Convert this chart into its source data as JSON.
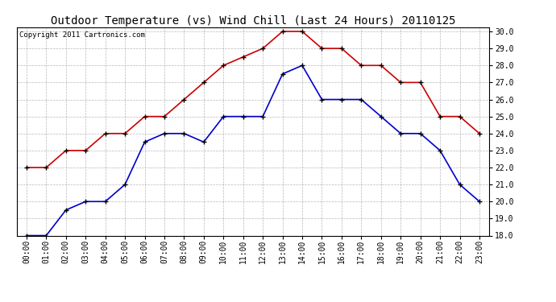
{
  "title": "Outdoor Temperature (vs) Wind Chill (Last 24 Hours) 20110125",
  "copyright": "Copyright 2011 Cartronics.com",
  "x_labels": [
    "00:00",
    "01:00",
    "02:00",
    "03:00",
    "04:00",
    "05:00",
    "06:00",
    "07:00",
    "08:00",
    "09:00",
    "10:00",
    "11:00",
    "12:00",
    "13:00",
    "14:00",
    "15:00",
    "16:00",
    "17:00",
    "18:00",
    "19:00",
    "20:00",
    "21:00",
    "22:00",
    "23:00"
  ],
  "red_line": [
    22.0,
    22.0,
    23.0,
    23.0,
    24.0,
    24.0,
    25.0,
    25.0,
    26.0,
    27.0,
    28.0,
    28.5,
    29.0,
    30.0,
    30.0,
    29.0,
    29.0,
    28.0,
    28.0,
    27.0,
    27.0,
    25.0,
    25.0,
    24.0
  ],
  "blue_line": [
    18.0,
    18.0,
    19.5,
    20.0,
    20.0,
    21.0,
    23.5,
    24.0,
    24.0,
    23.5,
    25.0,
    25.0,
    25.0,
    27.5,
    28.0,
    26.0,
    26.0,
    26.0,
    25.0,
    24.0,
    24.0,
    23.0,
    21.0,
    20.0
  ],
  "red_color": "#cc0000",
  "blue_color": "#0000cc",
  "bg_color": "#ffffff",
  "grid_color": "#999999",
  "ylim_min": 18.0,
  "ylim_max": 30.25,
  "yticks": [
    18.0,
    19.0,
    20.0,
    21.0,
    22.0,
    23.0,
    24.0,
    25.0,
    26.0,
    27.0,
    28.0,
    29.0,
    30.0
  ],
  "title_fontsize": 10,
  "tick_fontsize": 7,
  "copyright_fontsize": 6.5
}
